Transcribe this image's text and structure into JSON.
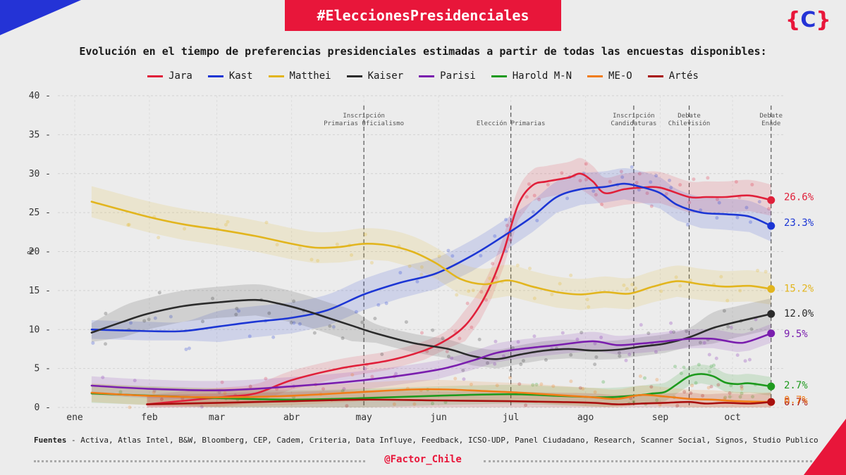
{
  "hashtag": "#EleccionesPresidenciales",
  "logo": {
    "open": "{",
    "letter": "C",
    "close": "}"
  },
  "footer": {
    "sources_label": "Fuentes",
    "sources_text": " - Activa, Atlas Intel, B&W, Bloomberg, CEP, Cadem, Criteria, Data Influye, Feedback, ICSO-UDP, Panel Ciudadano, Research, Scanner Social, Signos, Studio Publico",
    "handle": "@Factor_Chile"
  },
  "chart_data": {
    "type": "line",
    "title": "Evolución en el tiempo de preferencias presidenciales estimadas a partir de todas las encuestas disponibles:",
    "ylabel": "%",
    "ylim": [
      0,
      40
    ],
    "yticks": [
      0,
      5,
      10,
      15,
      20,
      25,
      30,
      35,
      40
    ],
    "xlim": [
      0,
      292
    ],
    "xticks": [
      {
        "label": "ene",
        "x": 0
      },
      {
        "label": "feb",
        "x": 31
      },
      {
        "label": "mar",
        "x": 59
      },
      {
        "label": "abr",
        "x": 90
      },
      {
        "label": "may",
        "x": 120
      },
      {
        "label": "jun",
        "x": 151
      },
      {
        "label": "jul",
        "x": 181
      },
      {
        "label": "ago",
        "x": 212
      },
      {
        "label": "sep",
        "x": 243
      },
      {
        "label": "oct",
        "x": 273
      }
    ],
    "grid": true,
    "legend": "top",
    "events": [
      {
        "x": 120,
        "label": [
          "Inscripción",
          "Primarias Oficialismo"
        ]
      },
      {
        "x": 181,
        "label": [
          "Elección Primarias"
        ]
      },
      {
        "x": 232,
        "label": [
          "Inscripción",
          "Candidaturas"
        ]
      },
      {
        "x": 255,
        "label": [
          "Debate",
          "Chilevisión"
        ]
      },
      {
        "x": 289,
        "label": [
          "Debate",
          "Enade"
        ]
      }
    ],
    "series": [
      {
        "name": "Jara",
        "color": "#e0203a",
        "end_label": "26.6%",
        "x": [
          30,
          60,
          75,
          90,
          110,
          130,
          145,
          155,
          162,
          168,
          173,
          178,
          184,
          190,
          196,
          205,
          210,
          215,
          220,
          228,
          235,
          243,
          255,
          262,
          270,
          280,
          289
        ],
        "y": [
          0.4,
          1.3,
          1.8,
          3.5,
          5,
          6,
          7.3,
          8.8,
          10.5,
          13,
          16,
          20,
          26,
          28.5,
          29,
          29.5,
          30,
          29,
          27.5,
          28,
          28.2,
          28.2,
          27,
          27,
          27,
          27.2,
          26.6
        ]
      },
      {
        "name": "Kast",
        "color": "#1c36d4",
        "end_label": "23.3%",
        "x": [
          7,
          30,
          45,
          60,
          75,
          90,
          105,
          120,
          135,
          150,
          165,
          178,
          190,
          200,
          210,
          220,
          228,
          235,
          243,
          250,
          260,
          270,
          280,
          289
        ],
        "y": [
          10,
          9.8,
          9.8,
          10.4,
          11,
          11.5,
          12.5,
          14.5,
          16,
          17.2,
          19.5,
          22,
          24.5,
          27,
          28,
          28.3,
          28.7,
          28.3,
          27.5,
          26,
          25,
          24.8,
          24.5,
          23.3
        ]
      },
      {
        "name": "Matthei",
        "color": "#e2b51e",
        "end_label": "15.2%",
        "x": [
          7,
          30,
          45,
          60,
          75,
          90,
          100,
          110,
          120,
          130,
          140,
          150,
          160,
          170,
          180,
          190,
          200,
          210,
          220,
          230,
          240,
          250,
          260,
          270,
          280,
          289
        ],
        "y": [
          26.4,
          24.5,
          23.5,
          22.8,
          22,
          21,
          20.5,
          20.6,
          21,
          20.8,
          20,
          18.5,
          16.5,
          15.8,
          16.3,
          15.5,
          14.8,
          14.5,
          14.8,
          14.6,
          15.5,
          16.2,
          15.8,
          15.5,
          15.6,
          15.2
        ]
      },
      {
        "name": "Kaiser",
        "color": "#2b2b2b",
        "end_label": "12.0%",
        "x": [
          7,
          20,
          30,
          45,
          60,
          75,
          85,
          95,
          105,
          115,
          125,
          140,
          155,
          165,
          175,
          185,
          195,
          205,
          215,
          225,
          235,
          245,
          255,
          265,
          275,
          289
        ],
        "y": [
          9.6,
          11,
          12,
          13,
          13.5,
          13.8,
          13.3,
          12.5,
          11.5,
          10.5,
          9.5,
          8.3,
          7.5,
          6.6,
          6.2,
          6.8,
          7.3,
          7.5,
          7.3,
          7.4,
          7.8,
          8.2,
          9,
          10.2,
          11,
          12.0
        ]
      },
      {
        "name": "Parisi",
        "color": "#7a1eae",
        "end_label": "9.5%",
        "x": [
          7,
          30,
          60,
          90,
          120,
          150,
          165,
          175,
          185,
          200,
          215,
          225,
          235,
          245,
          255,
          265,
          275,
          280,
          289
        ],
        "y": [
          2.8,
          2.4,
          2.2,
          2.7,
          3.5,
          4.8,
          6,
          7,
          7.5,
          8,
          8.5,
          8,
          8.2,
          8.5,
          8.8,
          8.8,
          8.3,
          8.5,
          9.5
        ]
      },
      {
        "name": "Harold M-N",
        "color": "#1e9a1e",
        "end_label": "2.7%",
        "x": [
          7,
          60,
          90,
          120,
          150,
          180,
          200,
          220,
          235,
          240,
          245,
          250,
          255,
          260,
          265,
          270,
          275,
          280,
          289
        ],
        "y": [
          1.8,
          1.2,
          1,
          1.2,
          1.5,
          1.7,
          1.5,
          1.3,
          1.6,
          1.8,
          2.0,
          3.0,
          4.0,
          4.3,
          4.0,
          3.2,
          3.0,
          3.1,
          2.7
        ]
      },
      {
        "name": "ME-O",
        "color": "#f07d18",
        "end_label": "0.7%",
        "x": [
          7,
          30,
          60,
          90,
          120,
          140,
          155,
          170,
          185,
          200,
          215,
          225,
          235,
          245,
          255,
          265,
          275,
          289
        ],
        "y": [
          1.9,
          1.5,
          1.3,
          1.5,
          2.0,
          2.3,
          2.3,
          2.1,
          1.9,
          1.6,
          1.3,
          1.1,
          1.6,
          1.4,
          1.1,
          1.0,
          0.8,
          0.7
        ]
      },
      {
        "name": "Artés",
        "color": "#a8100e",
        "end_label": "0.7%",
        "x": [
          30,
          60,
          90,
          120,
          150,
          180,
          200,
          215,
          225,
          235,
          245,
          255,
          262,
          270,
          280,
          289
        ],
        "y": [
          0.4,
          0.6,
          0.8,
          1.0,
          0.9,
          0.8,
          0.7,
          0.6,
          0.4,
          0.5,
          0.6,
          0.7,
          0.5,
          0.6,
          0.5,
          0.7
        ]
      }
    ]
  }
}
